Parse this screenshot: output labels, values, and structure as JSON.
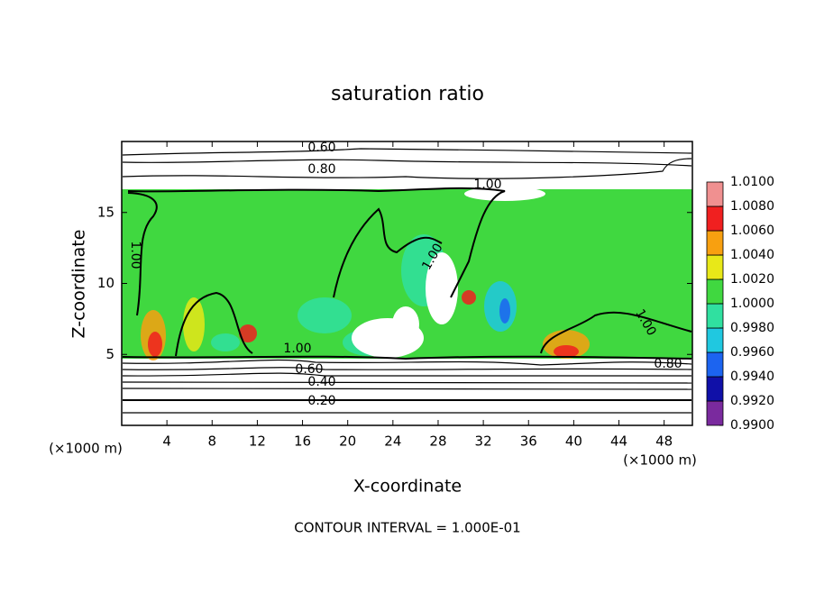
{
  "chart_data": {
    "type": "contour",
    "title": "saturation ratio",
    "x_label": "X-coordinate",
    "y_label": "Z-coordinate",
    "x_unit": "(×1000 m)",
    "footnote": "CONTOUR INTERVAL = 1.000E-01",
    "xlim": [
      0,
      50.5
    ],
    "ylim": [
      0,
      20
    ],
    "xticks": [
      4,
      8,
      12,
      16,
      20,
      24,
      28,
      32,
      36,
      40,
      44,
      48
    ],
    "yticks": [
      5,
      10,
      15
    ],
    "clim": [
      0.99,
      1.01
    ],
    "cticks": [
      {
        "value": 0.99,
        "label": "0.9900"
      },
      {
        "value": 0.992,
        "label": "0.9920"
      },
      {
        "value": 0.994,
        "label": "0.9940"
      },
      {
        "value": 0.996,
        "label": "0.9960"
      },
      {
        "value": 0.998,
        "label": "0.9980"
      },
      {
        "value": 1.0,
        "label": "1.0000"
      },
      {
        "value": 1.002,
        "label": "1.0020"
      },
      {
        "value": 1.004,
        "label": "1.0040"
      },
      {
        "value": 1.006,
        "label": "1.0060"
      },
      {
        "value": 1.008,
        "label": "1.0080"
      },
      {
        "value": 1.01,
        "label": "1.0100"
      }
    ],
    "colors": [
      "#7a2a9e",
      "#1010a8",
      "#1c64f0",
      "#20c8e0",
      "#30e0a0",
      "#40d840",
      "#e8e818",
      "#f8a010",
      "#f02020",
      "#f09090"
    ],
    "contour_labels": [
      {
        "value": 0.6,
        "label": "0.60"
      },
      {
        "value": 0.8,
        "label": "0.80"
      },
      {
        "value": 1.0,
        "label": "1.00"
      },
      {
        "value": 1.0,
        "label": "1.00"
      },
      {
        "value": 1.0,
        "label": "1.00"
      },
      {
        "value": 1.0,
        "label": "1.00"
      },
      {
        "value": 0.6,
        "label": "0.60"
      },
      {
        "value": 0.4,
        "label": "0.40"
      },
      {
        "value": 0.2,
        "label": "0.20"
      },
      {
        "value": 1.0,
        "label": "1.00"
      },
      {
        "value": 0.8,
        "label": "0.80"
      }
    ]
  }
}
